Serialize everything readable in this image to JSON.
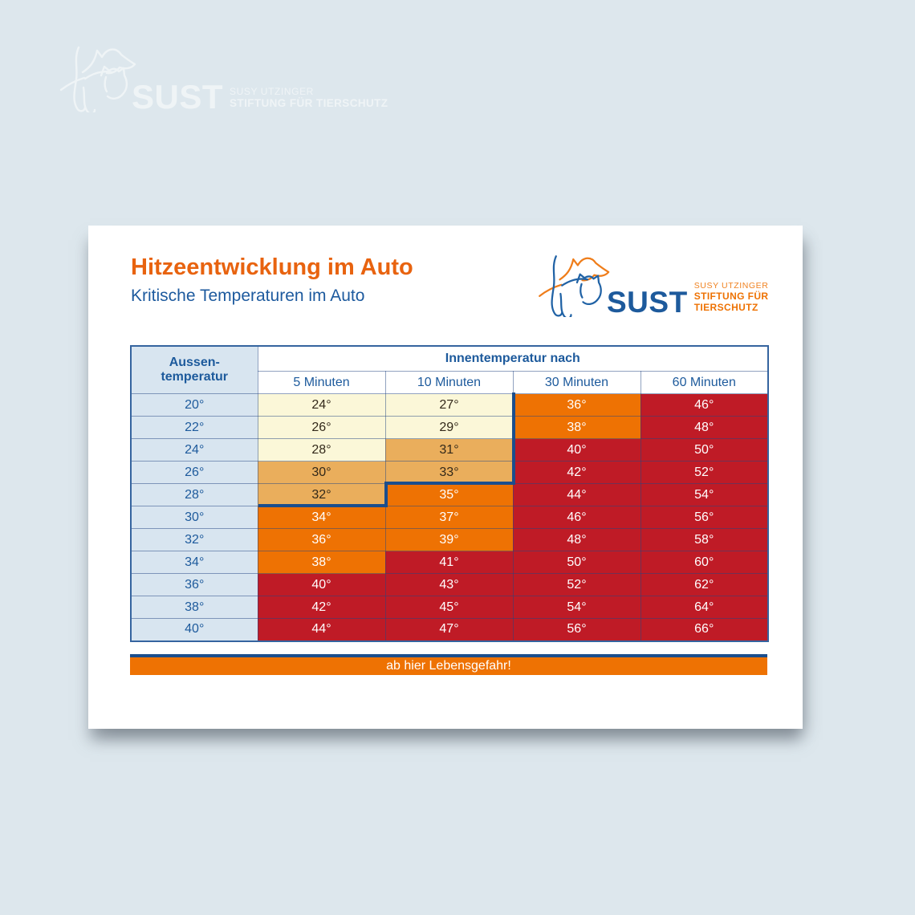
{
  "watermark": {
    "brand": "SUST",
    "line1": "SUSY UTZINGER",
    "line2": "STIFTUNG FÜR TIERSCHUTZ"
  },
  "card": {
    "title": "Hitzeentwicklung im Auto",
    "subtitle": "Kritische Temperaturen im Auto",
    "logo": {
      "brand": "SUST",
      "line1": "SUSY UTZINGER",
      "line2": "STIFTUNG FÜR TIERSCHUTZ"
    },
    "footer_bar": "ab hier Lebensgefahr!"
  },
  "table": {
    "corner": [
      "Aussen-",
      "temperatur"
    ],
    "group_header": "Innentemperatur nach",
    "col_headers": [
      "5 Minuten",
      "10 Minuten",
      "30 Minuten",
      "60 Minuten"
    ]
  },
  "chart_data": {
    "type": "heatmap",
    "title": "Hitzeentwicklung im Auto",
    "subtitle": "Kritische Temperaturen im Auto",
    "row_axis_label": "Aussentemperatur",
    "col_group_label": "Innentemperatur nach",
    "columns": [
      "5 Minuten",
      "10 Minuten",
      "30 Minuten",
      "60 Minuten"
    ],
    "rows": [
      {
        "outside": "20°",
        "cells": [
          {
            "value": "24°",
            "color": "cream"
          },
          {
            "value": "27°",
            "color": "cream"
          },
          {
            "value": "36°",
            "color": "orange"
          },
          {
            "value": "46°",
            "color": "red"
          }
        ]
      },
      {
        "outside": "22°",
        "cells": [
          {
            "value": "26°",
            "color": "cream"
          },
          {
            "value": "29°",
            "color": "cream"
          },
          {
            "value": "38°",
            "color": "orange"
          },
          {
            "value": "48°",
            "color": "red"
          }
        ]
      },
      {
        "outside": "24°",
        "cells": [
          {
            "value": "28°",
            "color": "cream"
          },
          {
            "value": "31°",
            "color": "tan"
          },
          {
            "value": "40°",
            "color": "red"
          },
          {
            "value": "50°",
            "color": "red"
          }
        ]
      },
      {
        "outside": "26°",
        "cells": [
          {
            "value": "30°",
            "color": "tan"
          },
          {
            "value": "33°",
            "color": "tan"
          },
          {
            "value": "42°",
            "color": "red"
          },
          {
            "value": "52°",
            "color": "red"
          }
        ]
      },
      {
        "outside": "28°",
        "cells": [
          {
            "value": "32°",
            "color": "tan"
          },
          {
            "value": "35°",
            "color": "orange"
          },
          {
            "value": "44°",
            "color": "red"
          },
          {
            "value": "54°",
            "color": "red"
          }
        ]
      },
      {
        "outside": "30°",
        "cells": [
          {
            "value": "34°",
            "color": "orange"
          },
          {
            "value": "37°",
            "color": "orange"
          },
          {
            "value": "46°",
            "color": "red"
          },
          {
            "value": "56°",
            "color": "red"
          }
        ]
      },
      {
        "outside": "32°",
        "cells": [
          {
            "value": "36°",
            "color": "orange"
          },
          {
            "value": "39°",
            "color": "orange"
          },
          {
            "value": "48°",
            "color": "red"
          },
          {
            "value": "58°",
            "color": "red"
          }
        ]
      },
      {
        "outside": "34°",
        "cells": [
          {
            "value": "38°",
            "color": "orange"
          },
          {
            "value": "41°",
            "color": "red"
          },
          {
            "value": "50°",
            "color": "red"
          },
          {
            "value": "60°",
            "color": "red"
          }
        ]
      },
      {
        "outside": "36°",
        "cells": [
          {
            "value": "40°",
            "color": "red"
          },
          {
            "value": "43°",
            "color": "red"
          },
          {
            "value": "52°",
            "color": "red"
          },
          {
            "value": "62°",
            "color": "red"
          }
        ]
      },
      {
        "outside": "38°",
        "cells": [
          {
            "value": "42°",
            "color": "red"
          },
          {
            "value": "45°",
            "color": "red"
          },
          {
            "value": "54°",
            "color": "red"
          },
          {
            "value": "64°",
            "color": "red"
          }
        ]
      },
      {
        "outside": "40°",
        "cells": [
          {
            "value": "44°",
            "color": "red"
          },
          {
            "value": "47°",
            "color": "red"
          },
          {
            "value": "56°",
            "color": "red"
          },
          {
            "value": "66°",
            "color": "red"
          }
        ]
      }
    ],
    "annotations": {
      "danger_note": "ab hier Lebensgefahr!"
    },
    "color_scale": {
      "cream": "#fbf7d8",
      "tan": "#eaae5c",
      "orange": "#ee7203",
      "red": "#bf1b26",
      "threshold_line": "#1b4e8d",
      "title_orange": "#e8630f",
      "text_blue": "#1d5a9e",
      "row_header_bg": "#d8e5f0"
    },
    "legend_position": "none",
    "grid": true
  }
}
